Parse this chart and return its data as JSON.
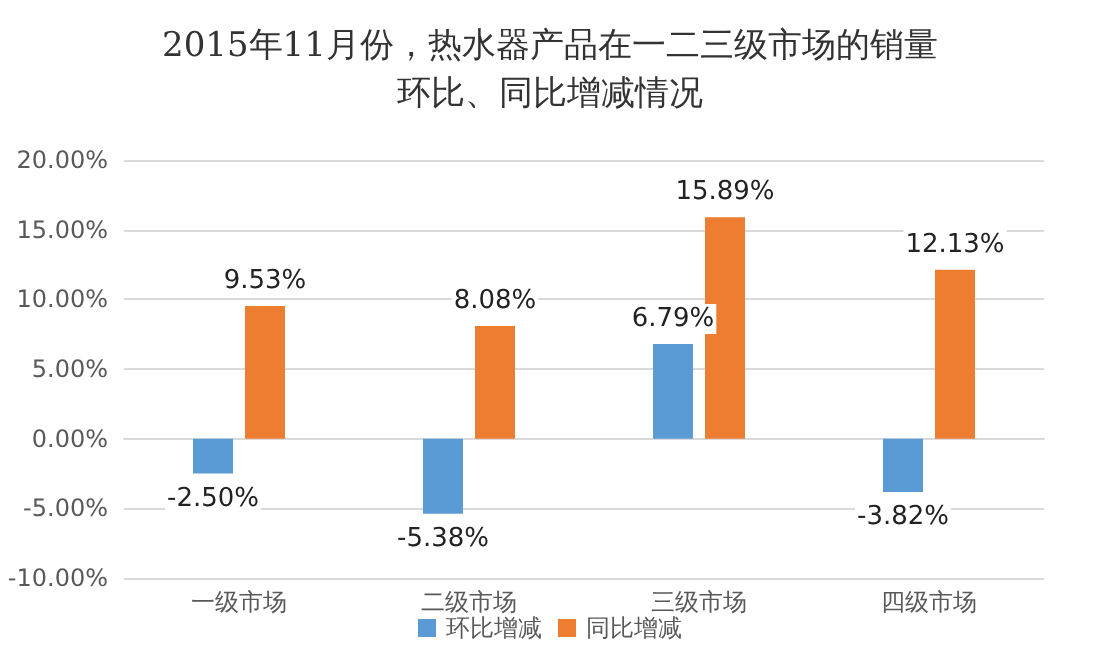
{
  "chart_data": {
    "type": "bar",
    "title": "2015年11月份，热水器产品在一二三级市场的销量环比、同比增减情况",
    "categories": [
      "一级市场",
      "二级市场",
      "三级市场",
      "四级市场"
    ],
    "series": [
      {
        "name": "环比增减",
        "color": "#5b9bd5",
        "values": [
          -2.5,
          -5.38,
          6.79,
          -3.82
        ],
        "value_labels": [
          "-2.50%",
          "-5.38%",
          "6.79%",
          "-3.82%"
        ]
      },
      {
        "name": "同比增减",
        "color": "#ed7d31",
        "values": [
          9.53,
          8.08,
          15.89,
          12.13
        ],
        "value_labels": [
          "9.53%",
          "8.08%",
          "15.89%",
          "12.13%"
        ]
      }
    ],
    "ylim": [
      -10,
      20
    ],
    "yticks": [
      {
        "value": -10,
        "label": "-10.00%"
      },
      {
        "value": -5,
        "label": "-5.00%"
      },
      {
        "value": 0,
        "label": "0.00%"
      },
      {
        "value": 5,
        "label": "5.00%"
      },
      {
        "value": 10,
        "label": "10.00%"
      },
      {
        "value": 15,
        "label": "15.00%"
      },
      {
        "value": 20,
        "label": "20.00%"
      }
    ],
    "grid": "y",
    "legend": "bottom"
  }
}
